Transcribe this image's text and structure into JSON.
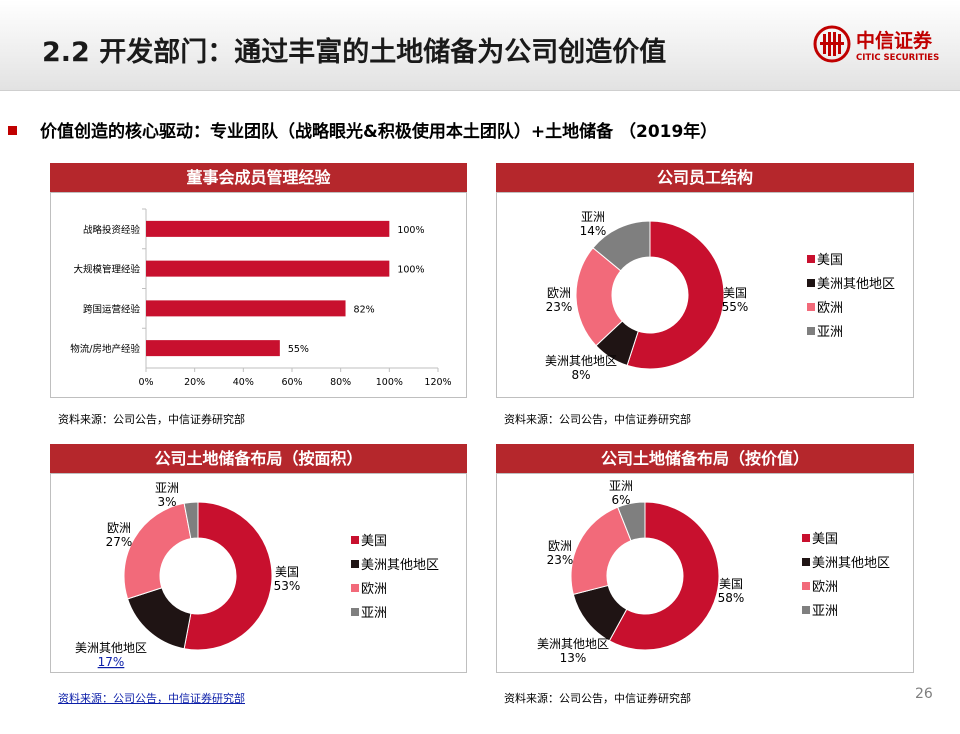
{
  "slide": {
    "title": "2.2 开发部门：通过丰富的土地储备为公司创造价值",
    "headline": "价值创造的核心驱动：专业团队（战略眼光&积极使用本土团队）+土地储备 （2019年）",
    "page_number": "26",
    "accent_color": "#c00000",
    "header_bar_color": "#b5272c"
  },
  "logo": {
    "cn": "中信证券",
    "en": "CITIC SECURITIES"
  },
  "panels": [
    {
      "header": "董事会成员管理经验",
      "source": "资料来源：公司公告，中信证券研究部"
    },
    {
      "header": "公司员工结构",
      "source": "资料来源：公司公告，中信证券研究部"
    },
    {
      "header": "公司土地储备布局（按面积）",
      "source": "资料来源：公司公告，中信证券研究部"
    },
    {
      "header": "公司土地储备布局（按价值）",
      "source": "资料来源：公司公告，中信证券研究部"
    }
  ],
  "legend": [
    "美国",
    "美洲其他地区",
    "欧洲",
    "亚洲"
  ],
  "colors": {
    "美国": "#c8102e",
    "美洲其他地区": "#1f1414",
    "欧洲": "#f26a7a",
    "亚洲": "#7f7f7f"
  },
  "chart_data": [
    {
      "type": "bar",
      "orientation": "horizontal",
      "categories": [
        "战略投资经验",
        "大规模管理经验",
        "跨国运营经验",
        "物流/房地产经验"
      ],
      "values": [
        100,
        100,
        82,
        55
      ],
      "value_labels": [
        "100%",
        "100%",
        "82%",
        "55%"
      ],
      "xlim": [
        0,
        120
      ],
      "xticks": [
        "0%",
        "20%",
        "40%",
        "60%",
        "80%",
        "100%",
        "120%"
      ],
      "bar_color": "#c8102e"
    },
    {
      "type": "pie",
      "donut": true,
      "labels": [
        "美国",
        "美洲其他地区",
        "欧洲",
        "亚洲"
      ],
      "values": [
        55,
        8,
        23,
        14
      ],
      "percent_labels": [
        "55%",
        "8%",
        "23%",
        "14%"
      ]
    },
    {
      "type": "pie",
      "donut": true,
      "labels": [
        "美国",
        "美洲其他地区",
        "欧洲",
        "亚洲"
      ],
      "values": [
        53,
        17,
        27,
        3
      ],
      "percent_labels": [
        "53%",
        "17%",
        "27%",
        "3%"
      ]
    },
    {
      "type": "pie",
      "donut": true,
      "labels": [
        "美国",
        "美洲其他地区",
        "欧洲",
        "亚洲"
      ],
      "values": [
        58,
        13,
        23,
        6
      ],
      "percent_labels": [
        "58%",
        "13%",
        "23%",
        "6%"
      ]
    }
  ]
}
